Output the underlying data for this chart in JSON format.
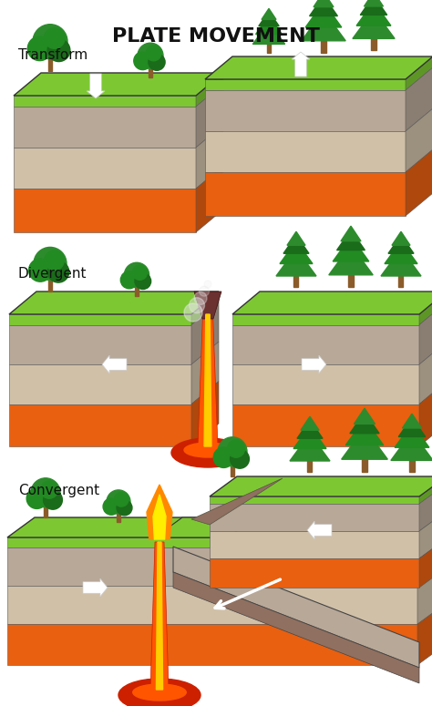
{
  "title": "PLATE MOVEMENT",
  "title_fontsize": 16,
  "title_fontweight": "bold",
  "bg_color": "#ffffff",
  "sections": [
    "Transform",
    "Divergent",
    "Convergent"
  ],
  "section_fontsize": 11,
  "colors": {
    "grass_top": "#7dc832",
    "grass_mid": "#6ab520",
    "grass_dark": "#4a9010",
    "rock_layer1": "#b8a898",
    "rock_layer2": "#a09080",
    "rock_layer3": "#c8b8a0",
    "rock_stripe": "#d0c0a8",
    "mantle_orange": "#e86010",
    "mantle_bright": "#f07020",
    "lava_red": "#cc2000",
    "lava_orange": "#ff5500",
    "lava_yellow": "#ffcc00",
    "fire_orange": "#ff8800",
    "fire_yellow": "#ffee00",
    "tree_green": "#2d8b2d",
    "tree_mid": "#228b22",
    "tree_dark": "#1a6b1a",
    "trunk_brown": "#8b5c2a",
    "fault_dark": "#6b3030",
    "steam_white": "#e8e8e8",
    "subduct_rock": "#907060",
    "subduct_dark": "#706050",
    "shadow": "#cccccc"
  }
}
